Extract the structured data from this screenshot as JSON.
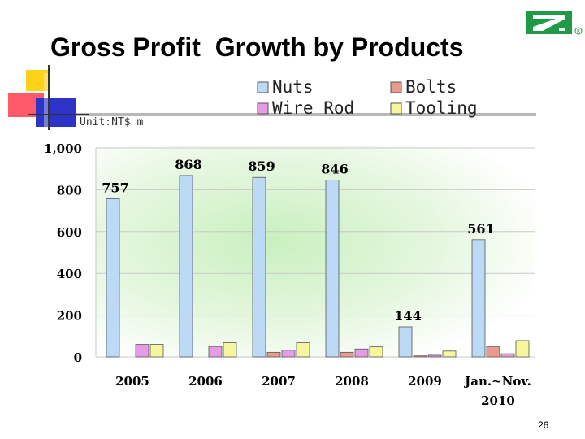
{
  "slide": {
    "title": "Gross Profit  Growth by Products",
    "page_number": "26",
    "logo_icon": "company-logo-icon"
  },
  "chart_data": {
    "type": "bar",
    "title": "Gross Profit  Growth by Products",
    "unit_label": "Unit:NT$ m",
    "categories": [
      "2005",
      "2006",
      "2007",
      "2008",
      "2009",
      "Jan.~Nov.\n2010"
    ],
    "series": [
      {
        "name": "Nuts",
        "color": "#bcd9f5",
        "values": [
          757,
          868,
          859,
          846,
          144,
          561
        ]
      },
      {
        "name": "Bolts",
        "color": "#e89a8c",
        "values": [
          0,
          0,
          22,
          22,
          5,
          50
        ]
      },
      {
        "name": "Wire Rod",
        "color": "#e79be7",
        "values": [
          60,
          50,
          32,
          38,
          8,
          15
        ]
      },
      {
        "name": "Tooling",
        "color": "#f6f69e",
        "values": [
          60,
          68,
          68,
          48,
          28,
          78
        ]
      }
    ],
    "data_labels": {
      "series": "Nuts",
      "labels": [
        "757",
        "868",
        "859",
        "846",
        "144",
        "561"
      ]
    },
    "ylim": [
      0,
      1000
    ],
    "yticks": [
      0,
      200,
      400,
      600,
      800,
      1000
    ],
    "ytick_labels": [
      "0",
      "200",
      "400",
      "600",
      "800",
      "1,000"
    ],
    "grid": true,
    "legend": "top-center"
  }
}
